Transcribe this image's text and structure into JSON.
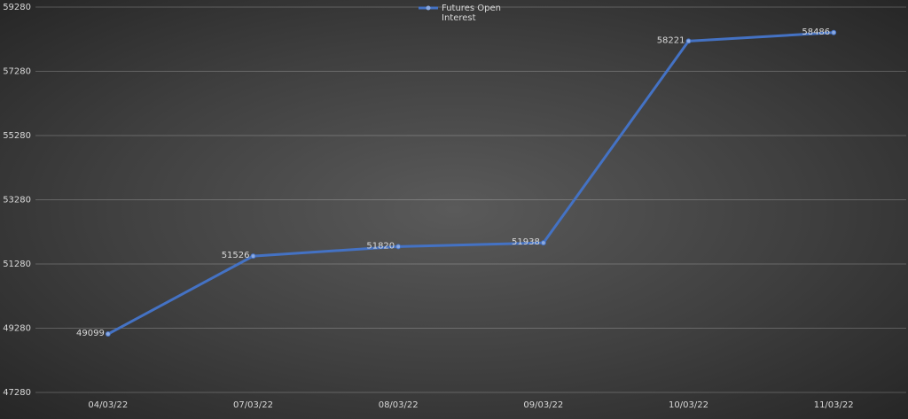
{
  "chart_data": {
    "type": "line",
    "categories": [
      "04/03/22",
      "07/03/22",
      "08/03/22",
      "09/03/22",
      "10/03/22",
      "11/03/22"
    ],
    "series": [
      {
        "name": "Futures Open Interest",
        "color": "#4472c4",
        "values": [
          49099,
          51526,
          51820,
          51938,
          58221,
          58486
        ]
      }
    ],
    "ylim": [
      47280,
      59280
    ],
    "yticks": [
      47280,
      49280,
      51280,
      53280,
      55280,
      57280,
      59280
    ],
    "grid": true,
    "data_labels": true,
    "legend": "top"
  }
}
